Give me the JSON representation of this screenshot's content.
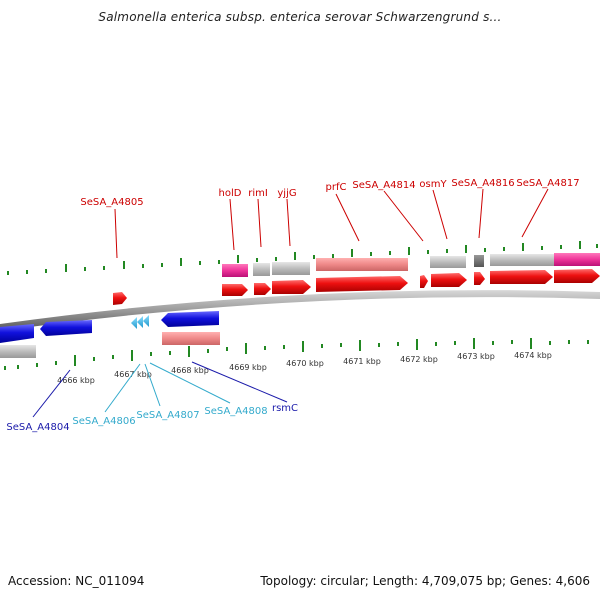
{
  "title": "Salmonella enterica subsp. enterica serovar Schwarzengrund s...",
  "footer": {
    "accession": "Accession: NC_011094",
    "info": "Topology: circular; Length: 4,709,075 bp; Genes: 4,606"
  },
  "colors": {
    "top_label": "#cc0000",
    "bottom_label_dark": "#1a1aaa",
    "bottom_label_light": "#33aacc",
    "tick": "#228822",
    "forward_cds": "#ee1111",
    "reverse_cds": "#1111dd",
    "gray_feature": "#bbbbbb",
    "pink_feature": "#ee3399",
    "salmon_feature": "#ee8888",
    "backbone": "#888888"
  },
  "kbp_labels": [
    "4666 kbp",
    "4667 kbp",
    "4668 kbp",
    "4669 kbp",
    "4670 kbp",
    "4671 kbp",
    "4672 kbp",
    "4673 kbp",
    "4674 kbp"
  ],
  "top_genes": [
    "SeSA_A4805",
    "holD",
    "rimI",
    "yjjG",
    "prfC",
    "SeSA_A4814",
    "osmY",
    "SeSA_A4816",
    "SeSA_A4817"
  ],
  "bottom_genes": [
    "SeSA_A4804",
    "SeSA_A4806",
    "SeSA_A4807",
    "SeSA_A4808",
    "rsmC"
  ]
}
